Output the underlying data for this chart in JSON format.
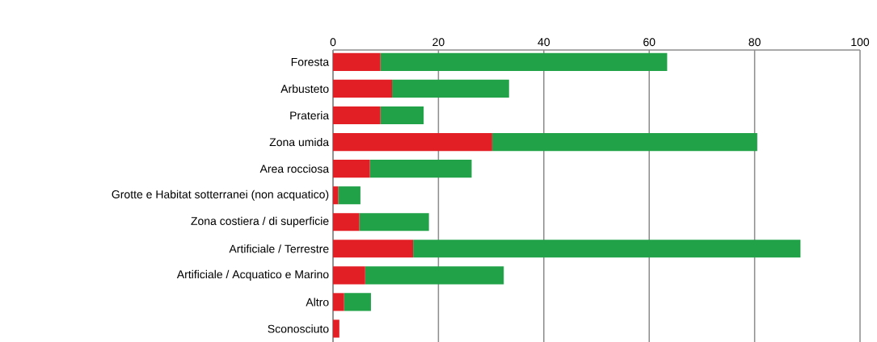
{
  "chart_data": {
    "type": "bar",
    "orientation": "horizontal",
    "stacked": true,
    "categories": [
      "Foresta",
      "Arbusteto",
      "Prateria",
      "Zona umida",
      "Area rocciosa",
      "Grotte e Habitat sotterranei (non acquatico)",
      "Zona costiera / di superficie",
      "Artificiale / Terrestre",
      "Artificiale / Acquatico e Marino",
      "Altro",
      "Sconosciuto"
    ],
    "series": [
      {
        "color": "#e31f26",
        "values": [
          9.0,
          11.2,
          9.0,
          30.2,
          7.0,
          1.0,
          5.0,
          15.2,
          6.1,
          2.1,
          1.2
        ]
      },
      {
        "color": "#21a249",
        "values": [
          54.4,
          22.2,
          8.2,
          50.3,
          19.3,
          4.2,
          13.2,
          73.5,
          26.3,
          5.1,
          0
        ]
      }
    ],
    "xlim": [
      0,
      100
    ],
    "xticks": [
      0,
      20,
      40,
      60,
      80,
      100
    ],
    "grid": "x"
  }
}
